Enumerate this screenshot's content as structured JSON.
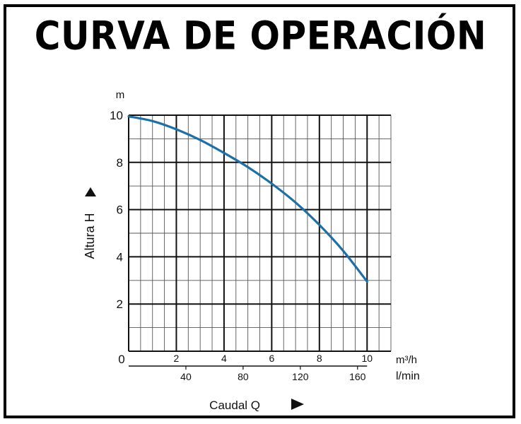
{
  "title": "CURVA DE OPERACIÓN",
  "chart_data": {
    "type": "line",
    "y_unit": "m",
    "ylabel": "Altura H",
    "xlabel": "Caudal Q",
    "x_unit_primary": "m³/h",
    "x_unit_secondary": "l/min",
    "origin_label": "0",
    "xlim": [
      0,
      11
    ],
    "ylim": [
      0,
      10
    ],
    "x_ticks": [
      2,
      4,
      6,
      8,
      10
    ],
    "x_secondary_ticks": [
      40,
      80,
      120,
      160
    ],
    "y_ticks": [
      2,
      4,
      6,
      8,
      10
    ],
    "grid": true,
    "series": [
      {
        "color": "#1d6fa8",
        "x": [
          0,
          1,
          2,
          3,
          4,
          5,
          6,
          7,
          8,
          9,
          10
        ],
        "y": [
          9.95,
          9.75,
          9.4,
          8.95,
          8.4,
          7.8,
          7.1,
          6.3,
          5.35,
          4.25,
          2.95
        ]
      }
    ]
  }
}
